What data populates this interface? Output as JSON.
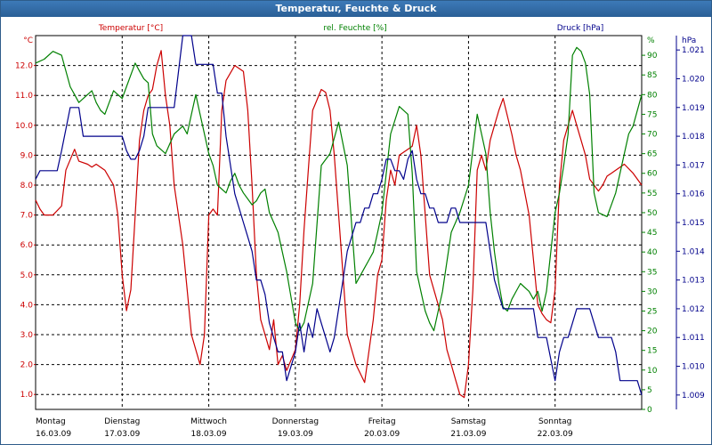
{
  "window": {
    "title": "Temperatur, Feuchte & Druck"
  },
  "colors": {
    "temperature": "#cc0000",
    "humidity": "#008000",
    "pressure": "#00008b",
    "grid": "#000000",
    "title_bg": "#2e6da4"
  },
  "chart_data": {
    "type": "line",
    "title": "Temperatur, Feuchte & Druck",
    "x_range": [
      0,
      7
    ],
    "x_labels": [
      {
        "day": "Montag",
        "date": "16.03.09",
        "x": 0
      },
      {
        "day": "Dienstag",
        "date": "17.03.09",
        "x": 1
      },
      {
        "day": "Mittwoch",
        "date": "18.03.09",
        "x": 2
      },
      {
        "day": "Donnerstag",
        "date": "19.03.09",
        "x": 3
      },
      {
        "day": "Freitag",
        "date": "20.03.09",
        "x": 4
      },
      {
        "day": "Samstag",
        "date": "21.03.09",
        "x": 5
      },
      {
        "day": "Sonntag",
        "date": "22.03.09",
        "x": 6
      }
    ],
    "axes": {
      "temperature": {
        "label": "Temperatur [°C]",
        "unit": "°C",
        "side": "left",
        "range": [
          0.5,
          13.0
        ],
        "ticks": [
          1.0,
          2.0,
          3.0,
          4.0,
          5.0,
          6.0,
          7.0,
          8.0,
          9.0,
          10.0,
          11.0,
          12.0
        ],
        "tick_labels": [
          "1.0",
          "2.0",
          "3.0",
          "4.0",
          "5.0",
          "6.0",
          "7.0",
          "8.0",
          "9.0",
          "10.0",
          "11.0",
          "12.0"
        ]
      },
      "humidity": {
        "label": "rel. Feuchte [%]",
        "unit": "%",
        "side": "right-inner",
        "range": [
          0,
          95
        ],
        "ticks": [
          0,
          5,
          10,
          15,
          20,
          25,
          30,
          35,
          40,
          45,
          50,
          55,
          60,
          65,
          70,
          75,
          80,
          85,
          90
        ],
        "tick_labels": [
          "0",
          "5",
          "10",
          "15",
          "20",
          "25",
          "30",
          "35",
          "40",
          "45",
          "50",
          "55",
          "60",
          "65",
          "70",
          "75",
          "80",
          "85",
          "90"
        ]
      },
      "pressure": {
        "label": "Druck [hPa]",
        "unit": "hPa",
        "side": "right-outer",
        "range": [
          1.0085,
          1.0215
        ],
        "ticks": [
          1.009,
          1.01,
          1.011,
          1.012,
          1.013,
          1.014,
          1.015,
          1.016,
          1.017,
          1.018,
          1.019,
          1.02,
          1.021
        ],
        "tick_labels": [
          "1.009",
          "1.010",
          "1.011",
          "1.012",
          "1.013",
          "1.014",
          "1.015",
          "1.016",
          "1.017",
          "1.018",
          "1.019",
          "1.020",
          "1.021"
        ]
      }
    },
    "series": [
      {
        "name": "Temperatur [°C]",
        "axis": "temperature",
        "color": "#cc0000",
        "x": [
          0,
          0.05,
          0.1,
          0.2,
          0.3,
          0.35,
          0.45,
          0.5,
          0.6,
          0.65,
          0.7,
          0.8,
          0.9,
          0.95,
          1.0,
          1.05,
          1.1,
          1.15,
          1.2,
          1.25,
          1.3,
          1.35,
          1.4,
          1.45,
          1.5,
          1.55,
          1.6,
          1.7,
          1.75,
          1.8,
          1.9,
          1.95,
          2.0,
          2.05,
          2.1,
          2.15,
          2.2,
          2.3,
          2.4,
          2.45,
          2.5,
          2.55,
          2.6,
          2.7,
          2.75,
          2.8,
          2.85,
          2.9,
          3.0,
          3.05,
          3.1,
          3.15,
          3.2,
          3.3,
          3.35,
          3.4,
          3.45,
          3.5,
          3.55,
          3.6,
          3.7,
          3.8,
          3.9,
          3.95,
          4.0,
          4.05,
          4.1,
          4.15,
          4.2,
          4.3,
          4.35,
          4.4,
          4.45,
          4.5,
          4.55,
          4.6,
          4.7,
          4.75,
          4.8,
          4.85,
          4.9,
          4.95,
          5.0,
          5.05,
          5.1,
          5.15,
          5.2,
          5.25,
          5.3,
          5.35,
          5.4,
          5.5,
          5.55,
          5.6,
          5.7,
          5.75,
          5.8,
          5.85,
          5.9,
          5.95,
          6.0,
          6.05,
          6.1,
          6.15,
          6.2,
          6.25,
          6.3,
          6.35,
          6.4,
          6.45,
          6.5,
          6.55,
          6.6,
          6.65,
          6.7,
          6.8,
          6.9,
          7.0
        ],
        "values": [
          7.5,
          7.2,
          7.0,
          7.0,
          7.3,
          8.5,
          9.2,
          8.8,
          8.7,
          8.6,
          8.7,
          8.5,
          8.0,
          7.0,
          5.0,
          3.8,
          4.5,
          7.0,
          9.5,
          10.5,
          11.0,
          11.2,
          12.0,
          12.5,
          11.0,
          10.0,
          8.0,
          6.0,
          4.5,
          3.0,
          2.0,
          3.0,
          7.0,
          7.2,
          7.0,
          10.5,
          11.5,
          12.0,
          11.8,
          10.5,
          8.0,
          5.0,
          3.5,
          2.5,
          3.5,
          2.0,
          2.3,
          1.8,
          2.5,
          4.0,
          6.5,
          8.5,
          10.5,
          11.2,
          11.1,
          10.5,
          9.0,
          7.0,
          5.0,
          3.0,
          2.0,
          1.4,
          3.5,
          5.0,
          5.5,
          7.5,
          8.5,
          8.0,
          9.0,
          9.2,
          9.3,
          10.0,
          9.0,
          7.0,
          5.0,
          4.5,
          3.5,
          2.5,
          2.0,
          1.5,
          1.0,
          0.9,
          2.0,
          4.5,
          8.5,
          9.0,
          8.5,
          9.5,
          10.0,
          10.5,
          10.9,
          9.7,
          9.0,
          8.5,
          7.0,
          5.5,
          4.0,
          3.7,
          3.5,
          3.4,
          4.5,
          8.0,
          9.5,
          10.0,
          10.5,
          10.0,
          9.5,
          9.0,
          8.2,
          8.0,
          7.8,
          8.0,
          8.3,
          8.4,
          8.5,
          8.7,
          8.4,
          8.0
        ]
      },
      {
        "name": "rel. Feuchte [%]",
        "axis": "humidity",
        "color": "#008000",
        "x": [
          0,
          0.1,
          0.2,
          0.3,
          0.4,
          0.45,
          0.5,
          0.55,
          0.6,
          0.65,
          0.7,
          0.75,
          0.8,
          0.85,
          0.9,
          0.95,
          1.0,
          1.05,
          1.1,
          1.15,
          1.2,
          1.25,
          1.3,
          1.35,
          1.4,
          1.5,
          1.6,
          1.7,
          1.75,
          1.8,
          1.85,
          1.9,
          2.0,
          2.05,
          2.1,
          2.2,
          2.25,
          2.3,
          2.35,
          2.4,
          2.5,
          2.55,
          2.6,
          2.65,
          2.7,
          2.8,
          2.9,
          3.0,
          3.05,
          3.1,
          3.2,
          3.3,
          3.4,
          3.5,
          3.6,
          3.7,
          3.75,
          3.8,
          3.85,
          3.9,
          3.95,
          4.0,
          4.05,
          4.1,
          4.2,
          4.3,
          4.35,
          4.4,
          4.45,
          4.5,
          4.55,
          4.6,
          4.7,
          4.8,
          4.9,
          5.0,
          5.1,
          5.2,
          5.25,
          5.3,
          5.35,
          5.4,
          5.45,
          5.5,
          5.55,
          5.6,
          5.7,
          5.75,
          5.8,
          5.85,
          5.9,
          6.0,
          6.05,
          6.1,
          6.15,
          6.2,
          6.25,
          6.3,
          6.35,
          6.4,
          6.45,
          6.5,
          6.6,
          6.7,
          6.8,
          6.85,
          6.9,
          7.0
        ],
        "values": [
          88,
          89,
          91,
          90,
          82,
          80,
          78,
          79,
          80,
          81,
          78,
          76,
          75,
          78,
          81,
          80,
          79,
          82,
          85,
          88,
          86,
          84,
          83,
          70,
          67,
          65,
          70,
          72,
          70,
          75,
          80,
          75,
          65,
          62,
          57,
          55,
          58,
          60,
          57,
          55,
          52,
          53,
          55,
          56,
          50,
          45,
          35,
          22,
          20,
          22,
          32,
          62,
          65,
          73,
          62,
          32,
          34,
          36,
          38,
          40,
          45,
          50,
          60,
          70,
          77,
          75,
          60,
          35,
          30,
          25,
          22,
          20,
          30,
          45,
          50,
          57,
          75,
          65,
          50,
          40,
          32,
          26,
          25,
          28,
          30,
          32,
          30,
          28,
          30,
          25,
          30,
          50,
          55,
          62,
          70,
          90,
          92,
          91,
          88,
          80,
          55,
          50,
          49,
          55,
          65,
          70,
          72,
          80
        ]
      },
      {
        "name": "Druck [hPa]",
        "axis": "pressure",
        "color": "#00008b",
        "x": [
          0,
          0.05,
          0.1,
          0.25,
          0.3,
          0.4,
          0.5,
          0.55,
          0.6,
          0.65,
          0.7,
          0.75,
          0.8,
          1.0,
          1.05,
          1.1,
          1.15,
          1.2,
          1.25,
          1.3,
          1.35,
          1.4,
          1.45,
          1.5,
          1.6,
          1.7,
          1.8,
          1.85,
          1.9,
          2.0,
          2.05,
          2.1,
          2.15,
          2.2,
          2.3,
          2.4,
          2.45,
          2.5,
          2.55,
          2.6,
          2.65,
          2.7,
          2.75,
          2.8,
          2.85,
          2.9,
          3.0,
          3.05,
          3.1,
          3.15,
          3.2,
          3.25,
          3.3,
          3.35,
          3.4,
          3.45,
          3.5,
          3.55,
          3.6,
          3.65,
          3.7,
          3.75,
          3.8,
          3.85,
          3.9,
          3.95,
          4.0,
          4.05,
          4.1,
          4.15,
          4.2,
          4.25,
          4.3,
          4.35,
          4.4,
          4.45,
          4.5,
          4.55,
          4.6,
          4.65,
          4.7,
          4.75,
          4.8,
          4.85,
          4.9,
          4.95,
          5.0,
          5.05,
          5.1,
          5.15,
          5.2,
          5.25,
          5.3,
          5.4,
          5.5,
          5.6,
          5.7,
          5.75,
          5.8,
          5.85,
          5.9,
          6.0,
          6.05,
          6.1,
          6.15,
          6.2,
          6.25,
          6.3,
          6.35,
          6.4,
          6.45,
          6.5,
          6.55,
          6.6,
          6.65,
          6.7,
          6.75,
          6.8,
          6.85,
          6.9,
          6.95,
          7.0
        ],
        "values": [
          1.0165,
          1.0168,
          1.0168,
          1.0168,
          1.0175,
          1.019,
          1.019,
          1.018,
          1.018,
          1.018,
          1.018,
          1.018,
          1.018,
          1.018,
          1.0175,
          1.0172,
          1.0172,
          1.0175,
          1.018,
          1.019,
          1.019,
          1.019,
          1.019,
          1.019,
          1.019,
          1.0215,
          1.0215,
          1.0205,
          1.0205,
          1.0205,
          1.0205,
          1.0195,
          1.0195,
          1.018,
          1.016,
          1.015,
          1.0145,
          1.014,
          1.013,
          1.013,
          1.0125,
          1.0115,
          1.011,
          1.0105,
          1.0105,
          1.0095,
          1.0105,
          1.0115,
          1.0105,
          1.0115,
          1.011,
          1.012,
          1.0115,
          1.011,
          1.0105,
          1.011,
          1.012,
          1.013,
          1.014,
          1.0145,
          1.015,
          1.015,
          1.0155,
          1.0155,
          1.016,
          1.016,
          1.0165,
          1.0172,
          1.0172,
          1.0168,
          1.0168,
          1.0165,
          1.0172,
          1.0175,
          1.0165,
          1.016,
          1.016,
          1.0155,
          1.0155,
          1.015,
          1.015,
          1.015,
          1.0155,
          1.0155,
          1.015,
          1.015,
          1.015,
          1.015,
          1.015,
          1.015,
          1.015,
          1.014,
          1.013,
          1.012,
          1.012,
          1.012,
          1.012,
          1.012,
          1.011,
          1.011,
          1.011,
          1.0095,
          1.0105,
          1.011,
          1.011,
          1.0115,
          1.012,
          1.012,
          1.012,
          1.012,
          1.0115,
          1.011,
          1.011,
          1.011,
          1.011,
          1.0105,
          1.0095,
          1.0095,
          1.0095,
          1.0095,
          1.0095,
          1.009
        ]
      }
    ]
  }
}
